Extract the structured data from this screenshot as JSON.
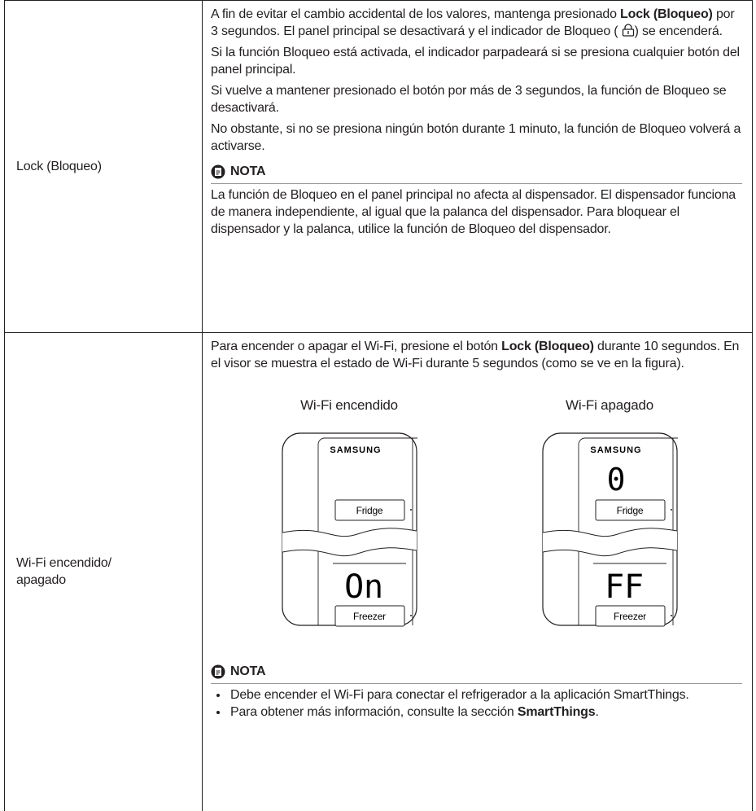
{
  "lock": {
    "label": "Lock (Bloqueo)",
    "p1": [
      "A fin de evitar el cambio accidental de los valores, mantenga presionado",
      "Lock (Bloqueo)",
      "por 3 segundos. El panel principal se desactivará y el indicador de Bloqueo (",
      ") se encenderá."
    ],
    "p2": "Si la función Bloqueo está activada, el indicador parpadeará si se presiona cualquier botón del panel principal.",
    "p3": "Si vuelve a mantener presionado el botón por más de 3 segundos, la función de Bloqueo se desactivará.",
    "p4": "No obstante, si no se presiona ningún botón durante 1 minuto, la función de Bloqueo volverá a activarse.",
    "note_title": "NOTA",
    "note": "La función de Bloqueo en el panel principal no afecta al dispensador. El dispensador funciona de manera independiente, al igual que la palanca del dispensador. Para bloquear el dispensador y la palanca, utilice la función de Bloqueo del dispensador."
  },
  "wifi": {
    "label": "Wi-Fi encendido/ apagado",
    "intro": [
      "Para encender o apagar el Wi-Fi, presione el botón",
      "Lock (Bloqueo)",
      "durante 10 segundos. En el visor se muestra el estado de Wi-Fi durante 5 segundos (como se ve en la figura)."
    ],
    "figures": [
      {
        "caption": "Wi-Fi encendido",
        "brand": "SAMSUNG",
        "fridge": "Fridge",
        "freezer": "Freezer",
        "lower_display": "On"
      },
      {
        "caption": "Wi-Fi apagado",
        "brand": "SAMSUNG",
        "upper_display": "0",
        "fridge": "Fridge",
        "freezer": "Freezer",
        "lower_display": "FF"
      }
    ],
    "note_title": "NOTA",
    "bullets": [
      "Debe encender el Wi-Fi para conectar el refrigerador a la aplicación SmartThings.",
      [
        "Para obtener más información, consulte la sección",
        "SmartThings",
        "."
      ]
    ]
  }
}
